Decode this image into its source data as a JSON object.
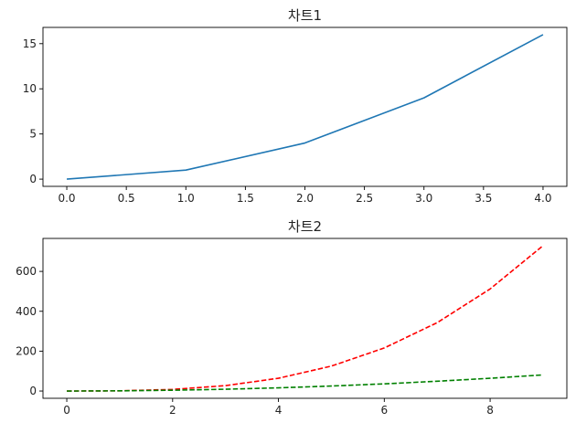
{
  "chart_data": [
    {
      "type": "line",
      "title": "차트1",
      "xlim": [
        -0.2,
        4.2
      ],
      "ylim": [
        -0.8,
        16.8
      ],
      "xticks": [
        0.0,
        0.5,
        1.0,
        1.5,
        2.0,
        2.5,
        3.0,
        3.5,
        4.0
      ],
      "xtick_labels": [
        "0.0",
        "0.5",
        "1.0",
        "1.5",
        "2.0",
        "2.5",
        "3.0",
        "3.5",
        "4.0"
      ],
      "yticks": [
        0,
        5,
        10,
        15
      ],
      "ytick_labels": [
        "0",
        "5",
        "10",
        "15"
      ],
      "grid": false,
      "series": [
        {
          "color": "#1f77b4",
          "line_style": "solid",
          "x": [
            0,
            1,
            2,
            3,
            4
          ],
          "y": [
            0,
            1,
            4,
            9,
            16
          ]
        }
      ]
    },
    {
      "type": "line",
      "title": "차트2",
      "xlim": [
        -0.45,
        9.45
      ],
      "ylim": [
        -36.45,
        765.45
      ],
      "xticks": [
        0,
        2,
        4,
        6,
        8
      ],
      "xtick_labels": [
        "0",
        "2",
        "4",
        "6",
        "8"
      ],
      "yticks": [
        0,
        200,
        400,
        600
      ],
      "ytick_labels": [
        "0",
        "200",
        "400",
        "600"
      ],
      "grid": false,
      "series": [
        {
          "color": "#ff0000",
          "line_style": "dashed",
          "x": [
            0,
            1,
            2,
            3,
            4,
            5,
            6,
            7,
            8,
            9
          ],
          "y": [
            0,
            1,
            8,
            27,
            64,
            125,
            216,
            343,
            512,
            729
          ]
        },
        {
          "color": "#008000",
          "line_style": "dashed",
          "x": [
            0,
            1,
            2,
            3,
            4,
            5,
            6,
            7,
            8,
            9
          ],
          "y": [
            0,
            1,
            4,
            9,
            16,
            25,
            36,
            49,
            64,
            81
          ]
        }
      ]
    }
  ]
}
